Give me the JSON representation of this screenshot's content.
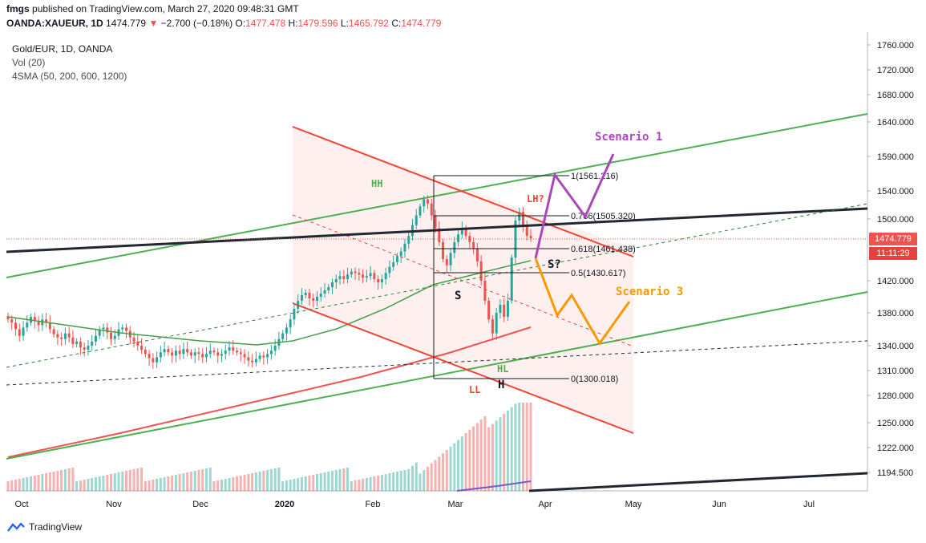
{
  "header": {
    "author": "fmgs",
    "published_text": "published on TradingView.com, March 27, 2020 09:48:31 GMT"
  },
  "ohlc": {
    "symbol": "OANDA:XAUEUR, 1D",
    "last": "1474.779",
    "change": "−2.700 (−0.18%)",
    "o_label": "O:",
    "o": "1477.478",
    "h_label": "H:",
    "h": "1479.596",
    "l_label": "L:",
    "l": "1465.792",
    "c_label": "C:",
    "c": "1474.779"
  },
  "legend": {
    "title": "Gold/EUR, 1D, OANDA",
    "vol": "Vol (20)",
    "sma": "4SMA (50, 200, 600, 1200)"
  },
  "price_tag": {
    "value": "1474.779",
    "timer": "11:11:29"
  },
  "footer": {
    "brand": "TradingView"
  },
  "colors": {
    "up": "#26a69a",
    "down": "#ef5350",
    "channel": "#f44336",
    "green_line": "#4caf50",
    "purple": "#ab47bc",
    "orange": "#ff9800",
    "black": "#222831"
  },
  "chart_data": {
    "type": "candlestick",
    "y_axis": {
      "ticks": [
        1760,
        1720,
        1680,
        1640,
        1590,
        1540,
        1500,
        1420,
        1380,
        1340,
        1310,
        1280,
        1250,
        1222,
        1194.5
      ],
      "labels": [
        "1760.000",
        "1720.000",
        "1680.000",
        "1640.000",
        "1590.000",
        "1540.000",
        "1500.000",
        "1420.000",
        "1380.000",
        "1340.000",
        "1310.000",
        "1280.000",
        "1250.000",
        "1222.000",
        "1194.500"
      ]
    },
    "x_axis": {
      "labels": [
        "Oct",
        "Nov",
        "Dec",
        "2020",
        "Feb",
        "Mar",
        "Apr",
        "May",
        "Jun",
        "Jul"
      ]
    },
    "fib_levels": [
      {
        "label": "1(1561.216)",
        "value": 1561.216
      },
      {
        "label": "0.786(1505.320)",
        "value": 1505.32
      },
      {
        "label": "0.618(1461.438)",
        "value": 1461.438
      },
      {
        "label": "0.5(1430.617)",
        "value": 1430.617
      },
      {
        "label": "0(1300.018)",
        "value": 1300.018
      }
    ],
    "annotations": [
      {
        "text": "Scenario 1",
        "color": "#ab47bc"
      },
      {
        "text": "Scenario 3",
        "color": "#ff9800"
      },
      {
        "text": "HH",
        "color": "#4caf50"
      },
      {
        "text": "LH?",
        "color": "#f44336"
      },
      {
        "text": "S?",
        "color": "#131722"
      },
      {
        "text": "S",
        "color": "#131722"
      },
      {
        "text": "HL",
        "color": "#4caf50"
      },
      {
        "text": "LL",
        "color": "#f44336"
      },
      {
        "text": "H",
        "color": "#131722"
      }
    ],
    "closes": [
      1372,
      1368,
      1360,
      1352,
      1362,
      1368,
      1375,
      1370,
      1365,
      1372,
      1368,
      1360,
      1354,
      1350,
      1348,
      1355,
      1350,
      1342,
      1345,
      1338,
      1335,
      1340,
      1345,
      1352,
      1360,
      1362,
      1356,
      1348,
      1352,
      1360,
      1362,
      1358,
      1350,
      1345,
      1340,
      1335,
      1330,
      1325,
      1320,
      1326,
      1332,
      1336,
      1332,
      1328,
      1334,
      1330,
      1336,
      1332,
      1328,
      1332,
      1330,
      1326,
      1330,
      1334,
      1332,
      1328,
      1330,
      1334,
      1338,
      1334,
      1332,
      1330,
      1326,
      1322,
      1320,
      1324,
      1328,
      1326,
      1330,
      1334,
      1340,
      1348,
      1355,
      1362,
      1372,
      1385,
      1395,
      1402,
      1405,
      1398,
      1395,
      1400,
      1404,
      1408,
      1412,
      1418,
      1422,
      1426,
      1422,
      1428,
      1432,
      1430,
      1428,
      1424,
      1426,
      1430,
      1422,
      1418,
      1422,
      1430,
      1438,
      1444,
      1452,
      1458,
      1468,
      1478,
      1492,
      1505,
      1518,
      1528,
      1522,
      1505,
      1488,
      1470,
      1448,
      1440,
      1456,
      1470,
      1480,
      1488,
      1478,
      1470,
      1462,
      1445,
      1420,
      1395,
      1372,
      1355,
      1380,
      1390,
      1375,
      1395,
      1450,
      1498,
      1510,
      1490,
      1478,
      1475
    ],
    "volume_series": "Vol (20)",
    "sma_lengths": [
      50,
      200,
      600,
      1200
    ]
  }
}
